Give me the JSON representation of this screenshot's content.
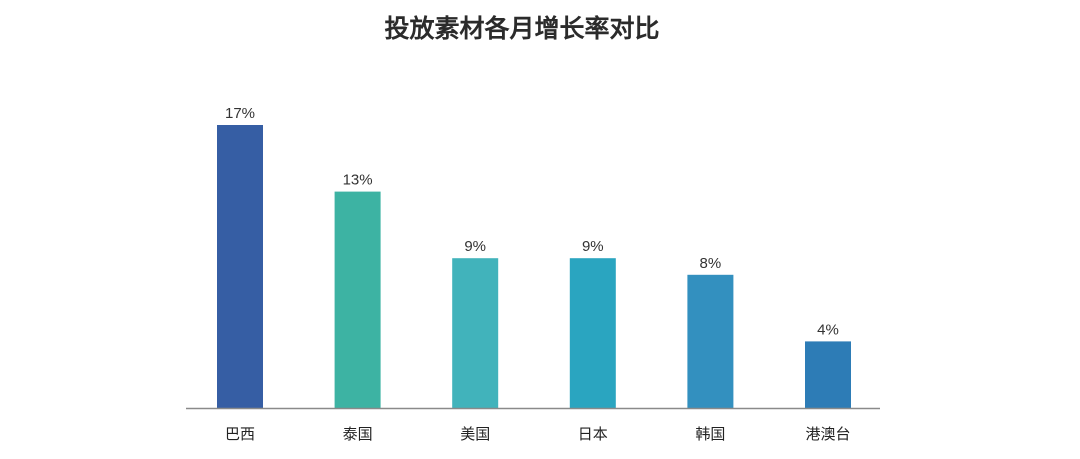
{
  "chart_data": {
    "type": "bar",
    "title": "投放素材各月增长率对比",
    "categories": [
      "巴西",
      "泰国",
      "美国",
      "日本",
      "韩国",
      "港澳台"
    ],
    "values": [
      17,
      13,
      9,
      9,
      8,
      4
    ],
    "value_labels": [
      "17%",
      "13%",
      "9%",
      "9%",
      "8%",
      "4%"
    ],
    "colors": [
      "#365ea4",
      "#3db3a3",
      "#41b3bb",
      "#2aa5c0",
      "#3390bf",
      "#2d7cb6"
    ],
    "unit": "%",
    "ylim": [
      0,
      17
    ],
    "grid": false,
    "legend": "none",
    "axis_color": "#8a8a8a"
  }
}
